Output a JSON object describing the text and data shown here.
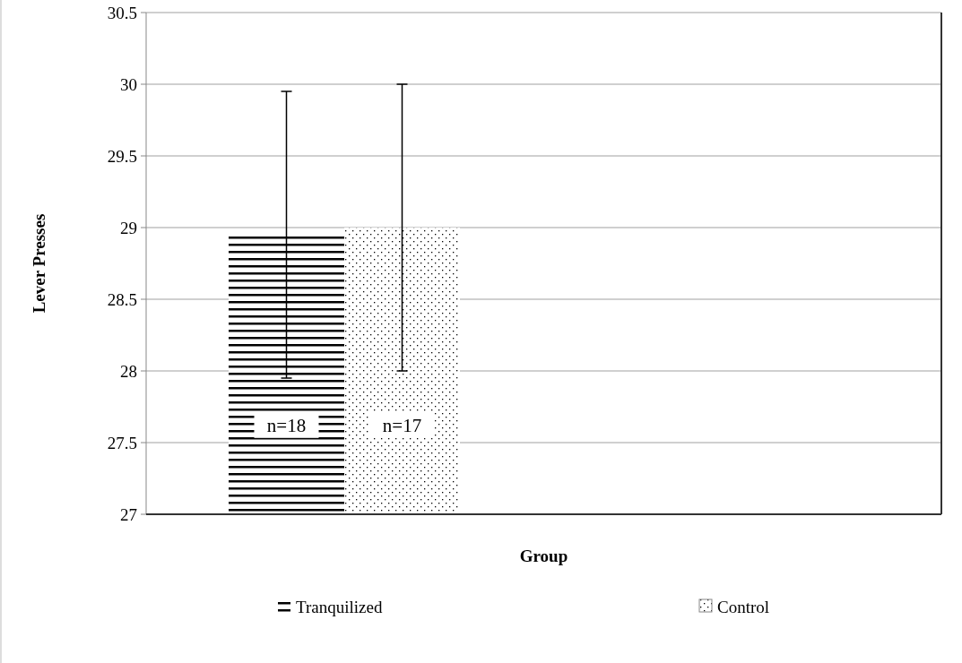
{
  "chart_data": {
    "type": "bar",
    "xlabel": "Group",
    "ylabel": "Lever Presses",
    "categories": [
      null
    ],
    "series": [
      {
        "name": "Tranquilized",
        "color": "#000000",
        "values": [
          28.95
        ],
        "errors": [
          1
        ]
      },
      {
        "name": "Control",
        "color": "#ffffff",
        "values": [
          29
        ],
        "errors": [
          1
        ]
      }
    ],
    "ylim": [
      27,
      30.5
    ],
    "yticks": [
      27,
      27.5,
      28,
      28.5,
      29,
      29.5,
      30,
      30.5
    ],
    "grid": "y",
    "legend": "bottom",
    "annotations": [
      "n=18",
      "n=17"
    ]
  }
}
